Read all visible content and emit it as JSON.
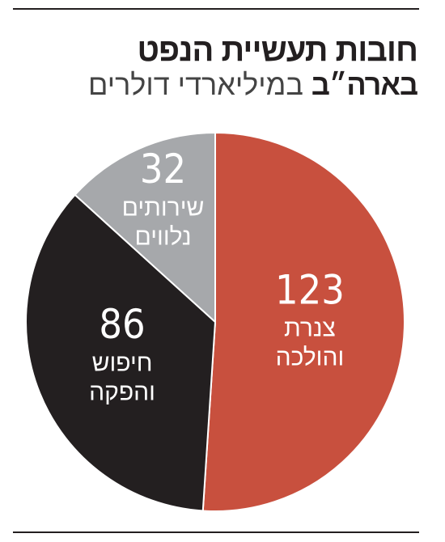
{
  "chart_data": {
    "type": "pie",
    "title": [
      "חובות תעשיית הנפט",
      "בארה״ב"
    ],
    "subtitle": "במיליארדי דולרים",
    "categories": [
      [
        "צנרת",
        "והולכה"
      ],
      [
        "חיפוש",
        "והפקה"
      ],
      [
        "שירותים",
        "נלווים"
      ]
    ],
    "values": [
      123,
      86,
      32
    ],
    "colors": [
      "#c8503e",
      "#231f20",
      "#a6a8ab"
    ]
  }
}
